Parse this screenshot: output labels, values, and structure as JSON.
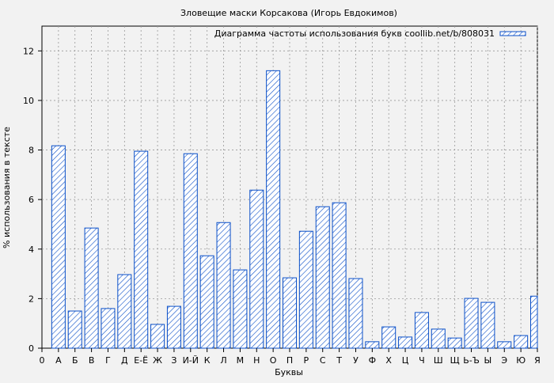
{
  "chart_data": {
    "type": "bar",
    "title": "Зловещие маски Корсакова (Игорь Евдокимов)",
    "xlabel": "Буквы",
    "ylabel": "% использования в тексте",
    "legend": {
      "label": "Диаграмма частоты использования букв coollib.net/b/808031",
      "placement": "top-right"
    },
    "x_origin_label": "0",
    "categories": [
      "А",
      "Б",
      "В",
      "Г",
      "Д",
      "Е-Ё",
      "Ж",
      "З",
      "И-Й",
      "К",
      "Л",
      "М",
      "Н",
      "О",
      "П",
      "Р",
      "С",
      "Т",
      "У",
      "Ф",
      "Х",
      "Ц",
      "Ч",
      "Ш",
      "Щ",
      "Ь-Ъ",
      "Ы",
      "Э",
      "Ю",
      "Я"
    ],
    "values": [
      8.17,
      1.5,
      4.85,
      1.6,
      2.97,
      7.95,
      0.96,
      1.69,
      7.85,
      3.73,
      5.07,
      3.16,
      6.38,
      11.2,
      2.84,
      4.72,
      5.71,
      5.87,
      2.81,
      0.26,
      0.86,
      0.45,
      1.44,
      0.77,
      0.41,
      2.01,
      1.85,
      0.26,
      0.51,
      2.1
    ],
    "yticks": [
      0,
      2,
      4,
      6,
      8,
      10,
      12
    ],
    "ylim": [
      0,
      13
    ],
    "grid": true,
    "bar_color": "#0a4fc8"
  }
}
